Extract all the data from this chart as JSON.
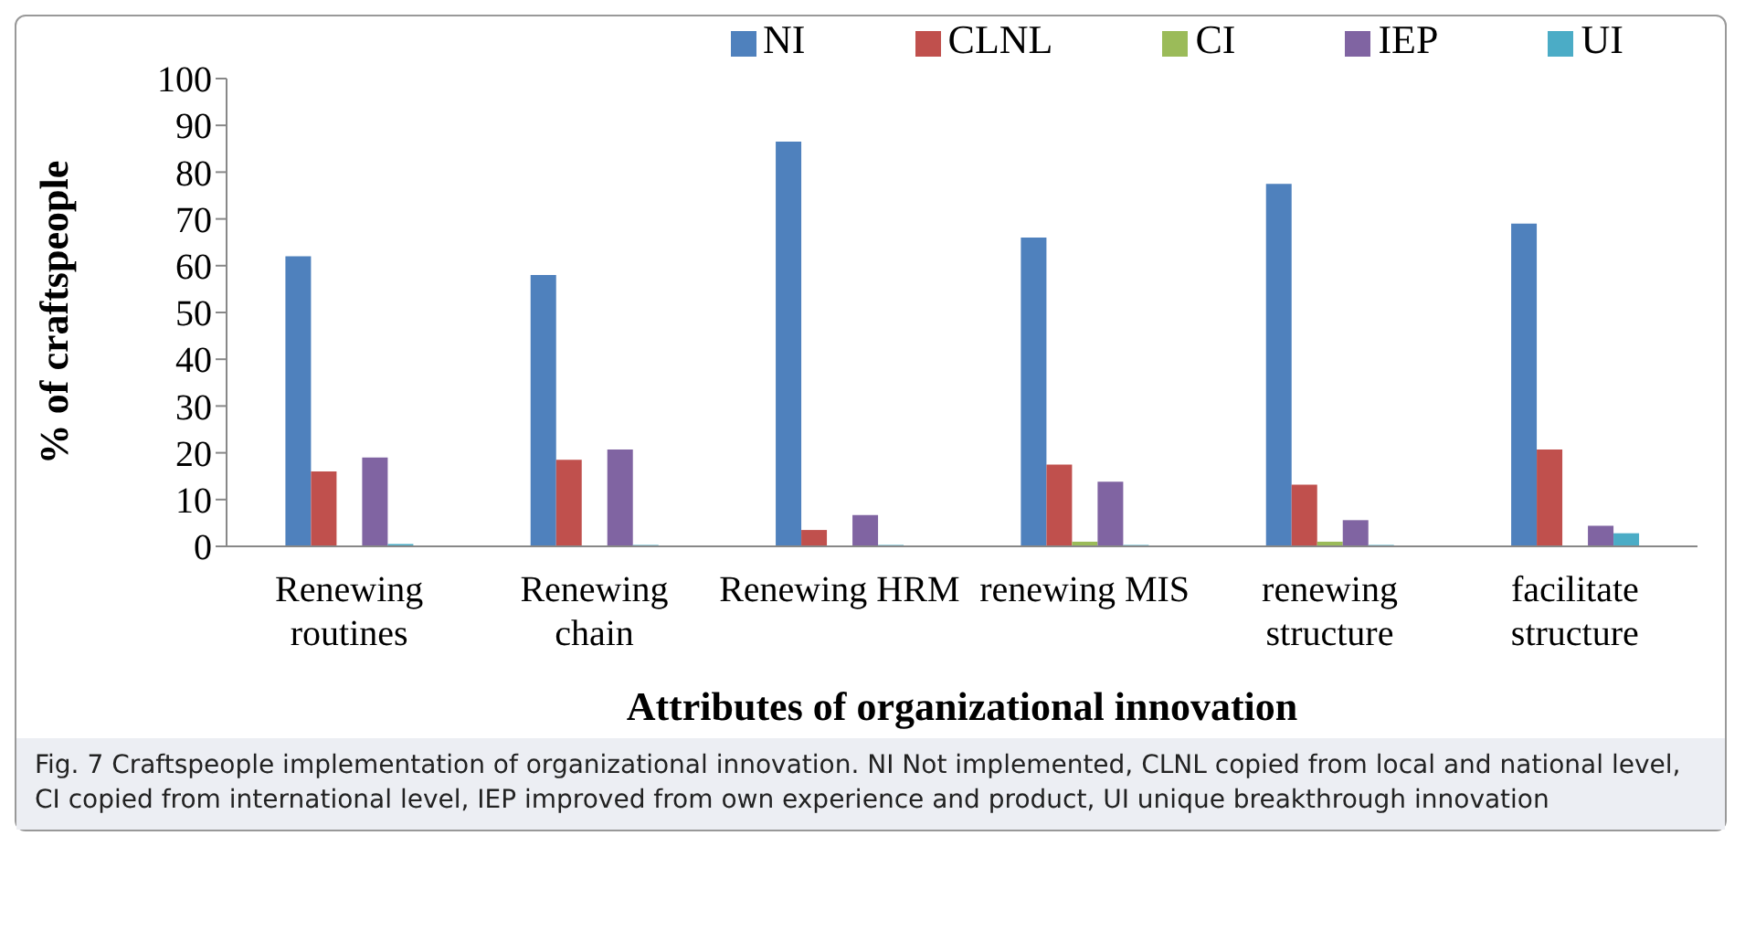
{
  "chart_data": {
    "type": "bar",
    "xlabel": "Attributes of organizational innovation",
    "ylabel": "% of craftspeople",
    "categories": [
      "Renewing routines",
      "Renewing chain",
      "Renewing HRM",
      "renewing MIS",
      "renewing structure",
      "facilitate structure"
    ],
    "series": [
      {
        "name": "NI",
        "color": "#4f81bd",
        "values": [
          62,
          58,
          86.5,
          66,
          77.5,
          69
        ]
      },
      {
        "name": "CLNL",
        "color": "#c0504d",
        "values": [
          16,
          18.5,
          3.5,
          17.5,
          13.2,
          20.7
        ]
      },
      {
        "name": "CI",
        "color": "#9bbb59",
        "values": [
          0,
          0,
          0,
          1,
          1,
          0
        ]
      },
      {
        "name": "IEP",
        "color": "#8064a2",
        "values": [
          19,
          20.7,
          6.7,
          13.8,
          5.6,
          4.4
        ]
      },
      {
        "name": "UI",
        "color": "#4bacc6",
        "values": [
          0.5,
          0.3,
          0.3,
          0.3,
          0.3,
          2.8
        ]
      }
    ],
    "ylim": [
      0,
      100
    ],
    "yticks": [
      0,
      10,
      20,
      30,
      40,
      50,
      60,
      70,
      80,
      90,
      100
    ],
    "grid": false,
    "legend": "top",
    "annotations": [
      "Fig. 7  Craftspeople implementation of organizational innovation. NI Not implemented, CLNL copied from local and national level, CI copied from international level, IEP improved from own experience and product, UI unique breakthrough innovation"
    ]
  }
}
